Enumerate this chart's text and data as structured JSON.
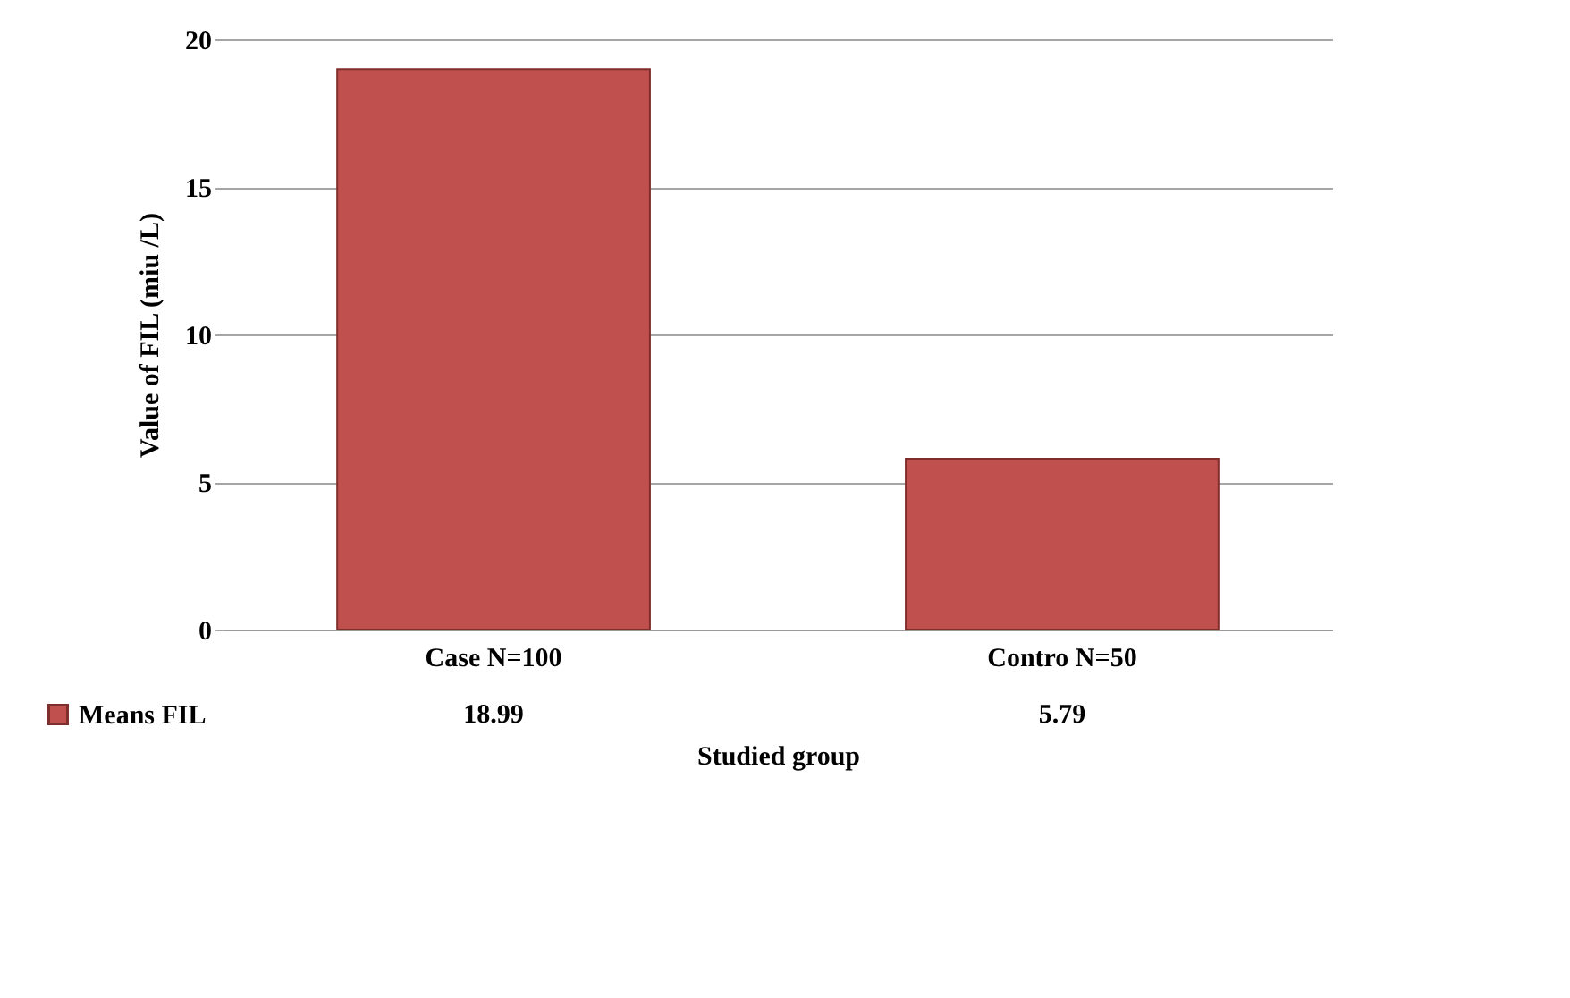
{
  "chart_data": {
    "type": "bar",
    "xlabel": "Studied group",
    "ylabel": "Value of FIL (miu /L)",
    "categories": [
      "Case N=100",
      "Contro N=50"
    ],
    "series": [
      {
        "name": "Means FIL",
        "color": "#c0504d",
        "values": [
          18.99,
          5.79
        ]
      }
    ],
    "ylim": [
      0,
      20
    ],
    "yticks": [
      0,
      5,
      10,
      15,
      20
    ],
    "grid": "y",
    "legend": "bottom left",
    "data_labels": true
  }
}
